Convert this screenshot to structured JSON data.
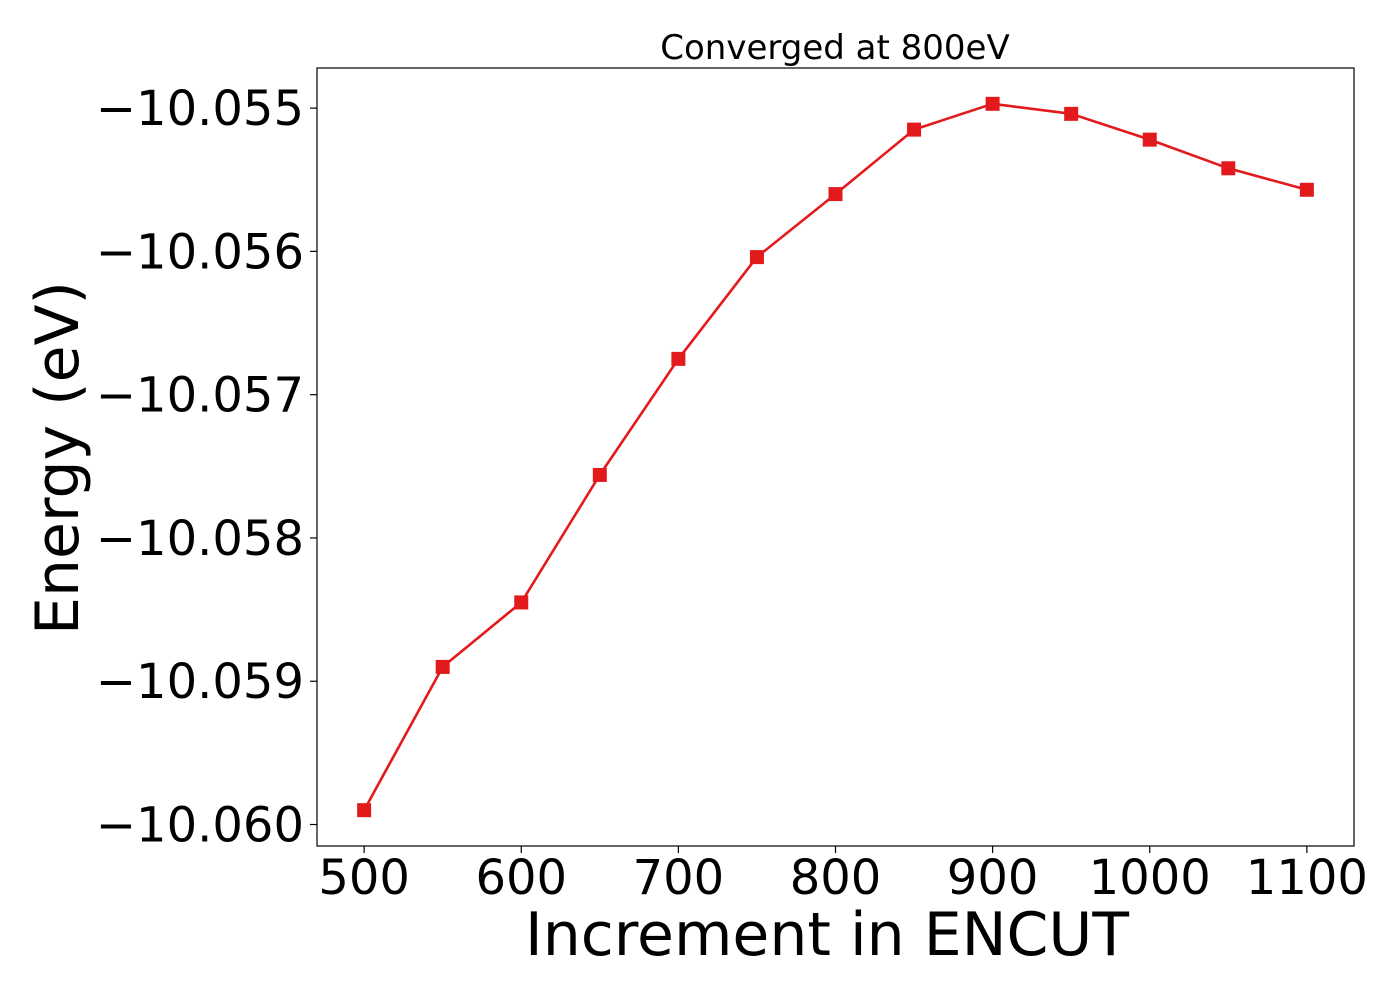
{
  "chart_data": {
    "type": "line",
    "title": "Converged at 800eV",
    "xlabel": "Increment in ENCUT",
    "ylabel": "Energy (eV)",
    "xlim": [
      470,
      1130
    ],
    "ylim": [
      -10.06015,
      -10.05472
    ],
    "xticks": [
      500,
      600,
      700,
      800,
      900,
      1000,
      1100
    ],
    "xtick_labels": [
      "500",
      "600",
      "700",
      "800",
      "900",
      "1000",
      "1100"
    ],
    "yticks": [
      -10.055,
      -10.056,
      -10.057,
      -10.058,
      -10.059,
      -10.06
    ],
    "ytick_labels": [
      "−10.055",
      "−10.056",
      "−10.057",
      "−10.058",
      "−10.059",
      "−10.060"
    ],
    "grid": false,
    "legend": "none",
    "series": [
      {
        "color": "#e31a1c",
        "marker": "square",
        "x": [
          500,
          550,
          600,
          650,
          700,
          750,
          800,
          850,
          900,
          950,
          1000,
          1050,
          1100
        ],
        "y": [
          -10.0599,
          -10.0589,
          -10.05845,
          -10.05756,
          -10.05675,
          -10.05604,
          -10.0556,
          -10.05515,
          -10.05497,
          -10.05504,
          -10.05522,
          -10.05542,
          -10.05557
        ]
      }
    ]
  }
}
